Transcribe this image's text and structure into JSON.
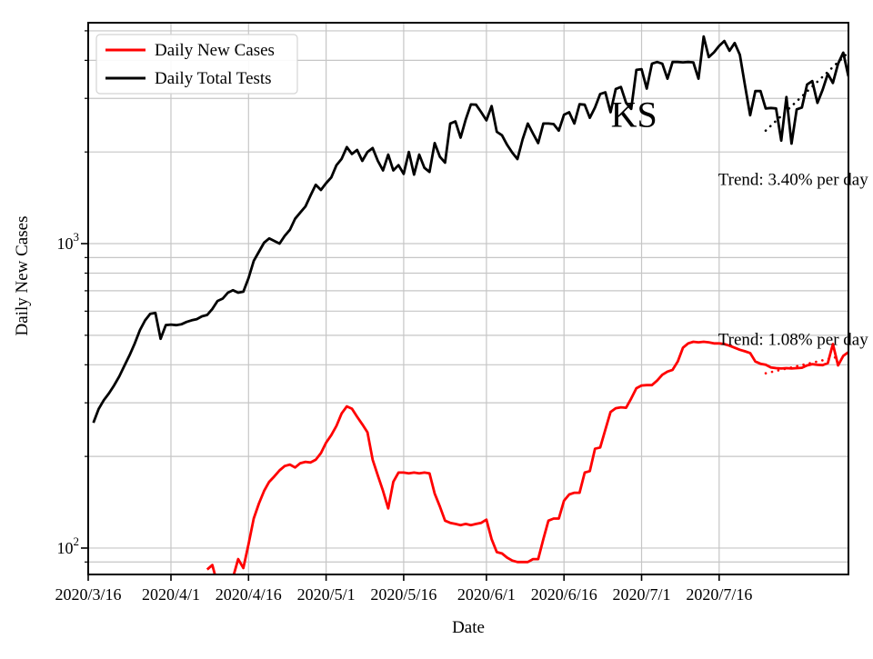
{
  "figure": {
    "background": "#ffffff"
  },
  "chart_data": {
    "type": "line",
    "annotation_title": "KS",
    "xlabel": "Date",
    "ylabel": "Daily New Cases",
    "x_start_date": "2020/3/16",
    "x_total_days": 147,
    "x_tick_days": [
      0,
      16,
      31,
      46,
      61,
      77,
      92,
      107,
      122
    ],
    "x_tick_labels": [
      "2020/3/16",
      "2020/4/1",
      "2020/4/16",
      "2020/5/1",
      "2020/5/16",
      "2020/6/1",
      "2020/6/16",
      "2020/7/1",
      "2020/7/16"
    ],
    "y_scale": "log",
    "ylim": [
      81.9,
      5316
    ],
    "y_major_ticks": [
      {
        "value": 100,
        "base": "10",
        "exp": "2"
      },
      {
        "value": 1000,
        "base": "10",
        "exp": "3"
      }
    ],
    "y_minor_ticks": [
      90,
      200,
      300,
      400,
      500,
      600,
      700,
      800,
      900,
      2000,
      3000,
      4000,
      5000
    ],
    "grid": true,
    "grid_color": "#c6c6c6",
    "axis_color": "#000000",
    "legend": {
      "position": "upper-left",
      "items": [
        {
          "label": "Daily New Cases",
          "color": "#ff0000"
        },
        {
          "label": "Daily Total Tests",
          "color": "#000000"
        }
      ]
    },
    "series": [
      {
        "name": "Daily Total Tests",
        "color": "#000000",
        "style": "solid",
        "values": [
          null,
          258,
          286,
          306,
          322,
          342,
          366,
          397,
          430,
          470,
          520,
          560,
          588,
          592,
          487,
          540,
          542,
          540,
          543,
          553,
          560,
          565,
          577,
          583,
          610,
          648,
          660,
          690,
          703,
          690,
          695,
          770,
          877,
          940,
          1007,
          1040,
          1020,
          1000,
          1060,
          1110,
          1207,
          1265,
          1325,
          1440,
          1560,
          1500,
          1580,
          1650,
          1810,
          1900,
          2075,
          1970,
          2030,
          1870,
          2000,
          2060,
          1870,
          1740,
          1960,
          1740,
          1810,
          1695,
          2000,
          1685,
          1960,
          1775,
          1720,
          2140,
          1930,
          1845,
          2480,
          2520,
          2230,
          2560,
          2865,
          2860,
          2700,
          2540,
          2830,
          2330,
          2270,
          2110,
          1990,
          1895,
          2200,
          2480,
          2300,
          2140,
          2480,
          2480,
          2470,
          2350,
          2650,
          2700,
          2480,
          2870,
          2860,
          2590,
          2800,
          3100,
          3140,
          2700,
          3220,
          3270,
          2900,
          2770,
          3720,
          3740,
          3230,
          3900,
          3950,
          3900,
          3480,
          3950,
          3950,
          3940,
          3950,
          3940,
          3480,
          4790,
          4100,
          4250,
          4460,
          4630,
          4300,
          4560,
          4170,
          3300,
          2640,
          3170,
          3170,
          2780,
          2790,
          2780,
          2180,
          3030,
          2130,
          2760,
          2800,
          3330,
          3420,
          2900,
          3200,
          3610,
          3370,
          3900,
          4240,
          3540
        ]
      },
      {
        "name": "Daily New Cases",
        "color": "#ff0000",
        "style": "solid",
        "values": [
          null,
          null,
          null,
          null,
          null,
          null,
          null,
          null,
          null,
          null,
          null,
          null,
          null,
          null,
          null,
          null,
          null,
          null,
          null,
          null,
          null,
          null,
          null,
          85,
          88,
          76,
          75,
          76,
          80,
          92,
          86,
          103,
          125,
          140,
          154,
          165,
          172,
          180,
          186,
          188,
          184,
          190,
          192,
          191,
          195,
          205,
          222,
          235,
          252,
          277,
          292,
          287,
          270,
          255,
          240,
          195,
          173,
          154,
          135,
          165,
          177,
          177,
          176,
          177,
          176,
          177,
          176,
          151,
          137,
          123,
          121,
          120,
          119,
          120,
          119,
          120,
          121,
          124,
          107,
          97,
          96,
          93,
          91,
          90,
          90,
          90,
          92,
          92,
          107,
          123,
          125,
          125,
          143,
          150,
          152,
          152,
          177,
          179,
          212,
          214,
          245,
          280,
          288,
          290,
          289,
          310,
          335,
          342,
          343,
          343,
          355,
          371,
          380,
          385,
          410,
          455,
          470,
          476,
          474,
          476,
          474,
          470,
          470,
          468,
          462,
          455,
          448,
          443,
          437,
          410,
          403,
          400,
          392,
          390,
          389,
          390,
          389,
          390,
          391,
          398,
          402,
          400,
          399,
          405,
          468,
          398,
          428,
          440
        ]
      }
    ],
    "trend_lines": [
      {
        "series": "Daily Total Tests",
        "label": "Trend: 3.40% per day",
        "color": "#000000",
        "start_day": 131,
        "end_day": 147,
        "start_value": 2350,
        "end_value": 4250
      },
      {
        "series": "Daily New Cases",
        "label": "Trend: 1.08% per day",
        "color": "#ff0000",
        "start_day": 131,
        "end_day": 145,
        "start_value": 375,
        "end_value": 425
      }
    ],
    "annotations": [
      {
        "text": "KS",
        "fx": 0.718,
        "fy": 0.166,
        "size": 40,
        "anchor": "middle",
        "color": "#000000"
      },
      {
        "text": "Trend: 3.40% per day",
        "fx": 1.026,
        "fy": 0.285,
        "size": 19,
        "anchor": "end",
        "color": "#000000"
      },
      {
        "text": "Trend: 1.08% per day",
        "fx": 1.026,
        "fy": 0.575,
        "size": 19,
        "anchor": "end",
        "color": "#000000"
      }
    ]
  }
}
